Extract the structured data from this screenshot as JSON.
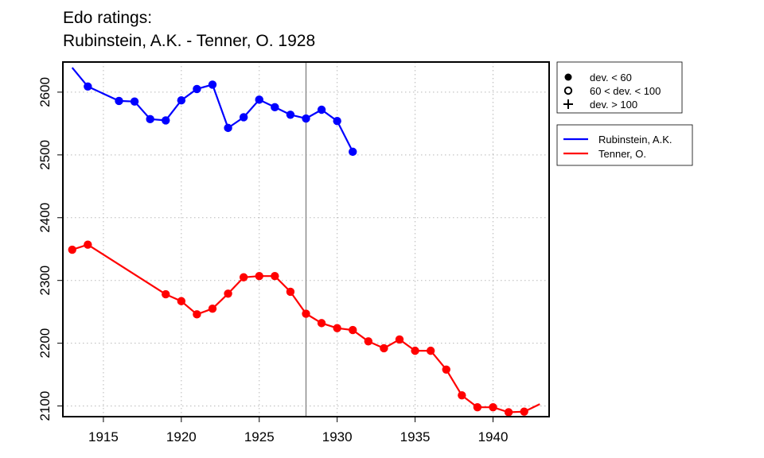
{
  "chart_data": {
    "type": "line",
    "title_lines": [
      "Edo ratings:",
      "Rubinstein, A.K. - Tenner, O. 1928"
    ],
    "xlabel": "",
    "ylabel": "",
    "xlim": [
      1912.4,
      1943.6
    ],
    "ylim": [
      2083,
      2648
    ],
    "x_ticks": [
      1915,
      1920,
      1925,
      1930,
      1935,
      1940
    ],
    "y_ticks": [
      2100,
      2200,
      2300,
      2400,
      2500,
      2600
    ],
    "grid": "dotted",
    "reference_line_x": 1928,
    "marker_legend": [
      {
        "symbol": "filled-circle",
        "label": "dev. < 60"
      },
      {
        "symbol": "open-circle",
        "label": "60 < dev. < 100"
      },
      {
        "symbol": "plus",
        "label": "dev. > 100"
      }
    ],
    "series": [
      {
        "name": "Rubinstein, A.K.",
        "color": "#0000ff",
        "line": [
          [
            1913,
            2639
          ],
          [
            1914,
            2609
          ],
          [
            1916,
            2586
          ],
          [
            1917,
            2585
          ],
          [
            1918,
            2557
          ],
          [
            1919,
            2555
          ],
          [
            1920,
            2587
          ],
          [
            1921,
            2605
          ],
          [
            1922,
            2612
          ],
          [
            1923,
            2543
          ],
          [
            1924,
            2560
          ],
          [
            1925,
            2588
          ],
          [
            1926,
            2576
          ],
          [
            1927,
            2564
          ],
          [
            1928,
            2558
          ],
          [
            1929,
            2572
          ],
          [
            1930,
            2554
          ],
          [
            1931,
            2505
          ]
        ],
        "points": [
          [
            1914,
            2609
          ],
          [
            1916,
            2586
          ],
          [
            1917,
            2585
          ],
          [
            1918,
            2557
          ],
          [
            1919,
            2555
          ],
          [
            1920,
            2587
          ],
          [
            1921,
            2605
          ],
          [
            1922,
            2612
          ],
          [
            1923,
            2543
          ],
          [
            1924,
            2560
          ],
          [
            1925,
            2588
          ],
          [
            1926,
            2576
          ],
          [
            1927,
            2564
          ],
          [
            1928,
            2558
          ],
          [
            1929,
            2572
          ],
          [
            1930,
            2554
          ],
          [
            1931,
            2505
          ]
        ]
      },
      {
        "name": "Tenner, O.",
        "color": "#ff0000",
        "line": [
          [
            1913,
            2349
          ],
          [
            1914,
            2357
          ],
          [
            1919,
            2278
          ],
          [
            1920,
            2267
          ],
          [
            1921,
            2246
          ],
          [
            1922,
            2255
          ],
          [
            1923,
            2279
          ],
          [
            1924,
            2305
          ],
          [
            1925,
            2307
          ],
          [
            1926,
            2307
          ],
          [
            1927,
            2282
          ],
          [
            1928,
            2247
          ],
          [
            1929,
            2232
          ],
          [
            1930,
            2224
          ],
          [
            1931,
            2221
          ],
          [
            1932,
            2203
          ],
          [
            1933,
            2192
          ],
          [
            1934,
            2206
          ],
          [
            1935,
            2188
          ],
          [
            1936,
            2188
          ],
          [
            1937,
            2158
          ],
          [
            1938,
            2117
          ],
          [
            1939,
            2098
          ],
          [
            1940,
            2098
          ],
          [
            1941,
            2090
          ],
          [
            1942,
            2091
          ],
          [
            1943,
            2103
          ]
        ],
        "points": [
          [
            1913,
            2349
          ],
          [
            1914,
            2357
          ],
          [
            1919,
            2278
          ],
          [
            1920,
            2267
          ],
          [
            1921,
            2246
          ],
          [
            1922,
            2255
          ],
          [
            1923,
            2279
          ],
          [
            1924,
            2305
          ],
          [
            1925,
            2307
          ],
          [
            1926,
            2307
          ],
          [
            1927,
            2282
          ],
          [
            1928,
            2247
          ],
          [
            1929,
            2232
          ],
          [
            1930,
            2224
          ],
          [
            1931,
            2221
          ],
          [
            1932,
            2203
          ],
          [
            1933,
            2192
          ],
          [
            1934,
            2206
          ],
          [
            1935,
            2188
          ],
          [
            1936,
            2188
          ],
          [
            1937,
            2158
          ],
          [
            1938,
            2117
          ],
          [
            1939,
            2098
          ],
          [
            1940,
            2098
          ],
          [
            1941,
            2090
          ],
          [
            1942,
            2091
          ]
        ]
      }
    ]
  }
}
